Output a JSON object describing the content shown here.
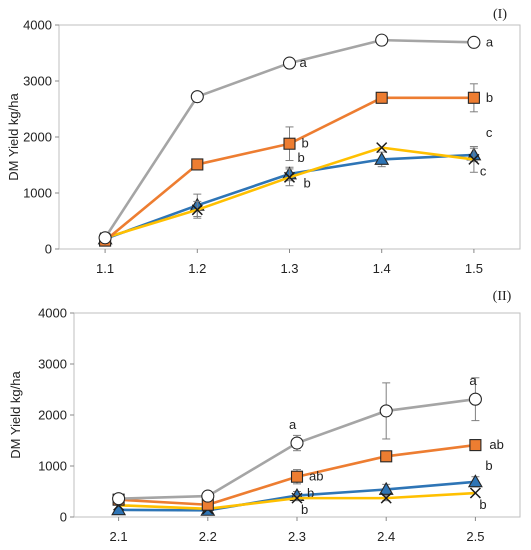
{
  "chart_data": [
    {
      "type": "line",
      "panel_label": "(I)",
      "ylabel": "DM Yield kg/ha",
      "xlabel": "",
      "categories": [
        "1.1",
        "1.2",
        "1.3",
        "1.4",
        "1.5"
      ],
      "ylim": [
        0,
        4000
      ],
      "yticks": [
        0,
        1000,
        2000,
        3000,
        4000
      ],
      "grid": false,
      "series": [
        {
          "marker": "circle",
          "color": "#a5a5a5",
          "values": [
            200,
            2720,
            3320,
            3730,
            3690
          ],
          "errors": [
            0,
            0,
            0,
            0,
            0
          ],
          "labels": [
            "",
            "",
            "a",
            "",
            "a"
          ]
        },
        {
          "marker": "square",
          "color": "#ed7d31",
          "values": [
            150,
            1510,
            1880,
            2700,
            2700
          ],
          "errors": [
            0,
            0,
            300,
            0,
            250
          ],
          "labels": [
            "",
            "",
            "b",
            "",
            "b"
          ]
        },
        {
          "marker": "triangle",
          "color": "#2e75b6",
          "values": [
            180,
            780,
            1340,
            1600,
            1680
          ],
          "errors": [
            0,
            200,
            120,
            130,
            120
          ],
          "labels": [
            "",
            "",
            "b",
            "",
            "c"
          ]
        },
        {
          "marker": "cross",
          "color": "#ffc000",
          "values": [
            200,
            700,
            1280,
            1810,
            1600
          ],
          "errors": [
            0,
            150,
            150,
            0,
            230
          ],
          "labels": [
            "",
            "",
            "b",
            "",
            "c"
          ]
        }
      ]
    },
    {
      "type": "line",
      "panel_label": "(II)",
      "ylabel": "DM Yield kg/ha",
      "xlabel": "",
      "categories": [
        "2.1",
        "2.2",
        "2.3",
        "2.4",
        "2.5"
      ],
      "ylim": [
        0,
        4000
      ],
      "yticks": [
        0,
        1000,
        2000,
        3000,
        4000
      ],
      "grid": false,
      "series": [
        {
          "marker": "circle",
          "color": "#a5a5a5",
          "values": [
            360,
            410,
            1450,
            2080,
            2310
          ],
          "errors": [
            0,
            0,
            150,
            550,
            420
          ],
          "labels": [
            "",
            "",
            "a",
            "",
            "a"
          ]
        },
        {
          "marker": "square",
          "color": "#ed7d31",
          "values": [
            340,
            240,
            790,
            1190,
            1410
          ],
          "errors": [
            0,
            0,
            140,
            0,
            0
          ],
          "labels": [
            "",
            "",
            "ab",
            "",
            "ab"
          ]
        },
        {
          "marker": "triangle",
          "color": "#2e75b6",
          "values": [
            140,
            130,
            420,
            540,
            690
          ],
          "errors": [
            0,
            0,
            80,
            100,
            100
          ],
          "labels": [
            "",
            "",
            "b",
            "",
            "b"
          ]
        },
        {
          "marker": "cross",
          "color": "#ffc000",
          "values": [
            230,
            160,
            370,
            370,
            470
          ],
          "errors": [
            0,
            0,
            50,
            50,
            0
          ],
          "labels": [
            "",
            "",
            "b",
            "",
            "b"
          ]
        }
      ]
    }
  ]
}
